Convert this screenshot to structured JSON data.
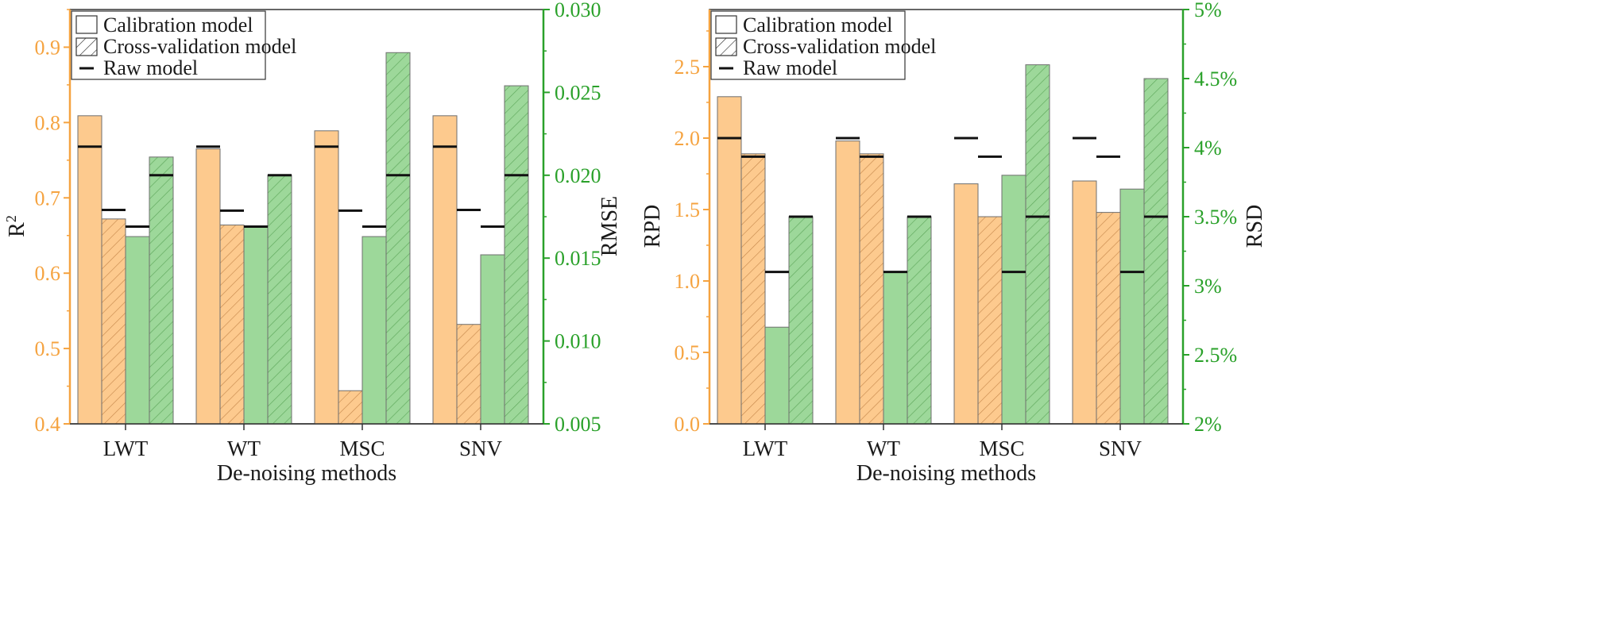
{
  "colors": {
    "calibration": "#fdca8e",
    "cross_validation": "#fdca8e",
    "green": "#9dd89a",
    "left_axis": "#f5a340",
    "right_axis": "#2aa12a",
    "frame": "#333333",
    "raw": "#111111"
  },
  "legend": {
    "calibration": "Calibration model",
    "cross_validation": "Cross-validation model",
    "raw": "Raw model"
  },
  "chart_data": [
    {
      "type": "bar",
      "categories": [
        "LWT",
        "WT",
        "MSC",
        "SNV"
      ],
      "xlabel": "De-noising methods",
      "left_axis": {
        "label": "R²",
        "label_base": "R",
        "label_sup": "2",
        "ylim": [
          0.4,
          0.95
        ],
        "ticks": [
          "0.4",
          "0.5",
          "0.6",
          "0.7",
          "0.8",
          "0.9"
        ]
      },
      "right_axis": {
        "label": "RMSE",
        "ylim": [
          0.005,
          0.03
        ],
        "ticks": [
          "0.005",
          "0.010",
          "0.015",
          "0.020",
          "0.025",
          "0.030"
        ]
      },
      "series": [
        {
          "name": "R2 Calibration model",
          "axis": "left",
          "pattern": "solid",
          "values": [
            0.809,
            0.765,
            0.789,
            0.809
          ]
        },
        {
          "name": "R2 Cross-validation model",
          "axis": "left",
          "pattern": "hatched",
          "values": [
            0.672,
            0.664,
            0.444,
            0.532
          ]
        },
        {
          "name": "RMSE Calibration model",
          "axis": "right",
          "pattern": "solid",
          "values": [
            0.0163,
            0.0169,
            0.0163,
            0.0152
          ]
        },
        {
          "name": "RMSE Cross-validation model",
          "axis": "right",
          "pattern": "hatched",
          "values": [
            0.0211,
            0.02,
            0.0274,
            0.0254
          ]
        }
      ],
      "raw_model": [
        {
          "axis": "left",
          "series": 0,
          "values": [
            0.768,
            0.768,
            0.768,
            0.768
          ]
        },
        {
          "axis": "left",
          "series": 1,
          "values": [
            0.684,
            0.683,
            0.683,
            0.684
          ]
        },
        {
          "axis": "right",
          "series": 2,
          "values": [
            0.0169,
            0.0169,
            0.0169,
            0.0169
          ]
        },
        {
          "axis": "right",
          "series": 3,
          "values": [
            0.02,
            0.02,
            0.02,
            0.02
          ]
        }
      ]
    },
    {
      "type": "bar",
      "categories": [
        "LWT",
        "WT",
        "MSC",
        "SNV"
      ],
      "xlabel": "De-noising methods",
      "left_axis": {
        "label": "RPD",
        "ylim": [
          0.0,
          2.9
        ],
        "ticks": [
          "0.0",
          "0.5",
          "1.0",
          "1.5",
          "2.0",
          "2.5"
        ]
      },
      "right_axis": {
        "label": "RSD",
        "ylim": [
          2,
          5
        ],
        "ticks": [
          "2%",
          "2.5%",
          "3%",
          "3.5%",
          "4%",
          "4.5%",
          "5%"
        ]
      },
      "series": [
        {
          "name": "RPD Calibration model",
          "axis": "left",
          "pattern": "solid",
          "values": [
            2.29,
            1.98,
            1.68,
            1.7
          ]
        },
        {
          "name": "RPD Cross-validation model",
          "axis": "left",
          "pattern": "hatched",
          "values": [
            1.89,
            1.89,
            1.45,
            1.48
          ]
        },
        {
          "name": "RSD Calibration model",
          "axis": "right",
          "pattern": "solid",
          "values": [
            2.7,
            3.1,
            3.8,
            3.7
          ]
        },
        {
          "name": "RSD Cross-validation model",
          "axis": "right",
          "pattern": "hatched",
          "values": [
            3.5,
            3.5,
            4.6,
            4.5
          ]
        }
      ],
      "raw_model": [
        {
          "axis": "left",
          "series": 0,
          "values": [
            2.0,
            2.0,
            2.0,
            2.0
          ]
        },
        {
          "axis": "left",
          "series": 1,
          "values": [
            1.87,
            1.87,
            1.87,
            1.87
          ]
        },
        {
          "axis": "right",
          "series": 2,
          "values": [
            3.1,
            3.1,
            3.1,
            3.1
          ]
        },
        {
          "axis": "right",
          "series": 3,
          "values": [
            3.5,
            3.5,
            3.5,
            3.5
          ]
        }
      ]
    }
  ]
}
